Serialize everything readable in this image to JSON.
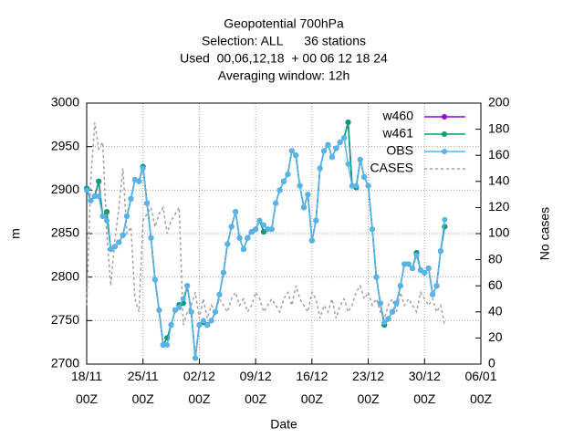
{
  "chart_data": {
    "type": "line",
    "title": [
      "Geopotential 700hPa",
      "Selection: ALL      36 stations",
      "Used  00,06,12,18  + 00 06 12 18 24",
      "Averaging window: 12h"
    ],
    "xlabel": "Date",
    "ylabel": "m",
    "y2label": "No cases",
    "x": [
      "18/11 00Z",
      "18/11 12Z",
      "19/11 00Z",
      "19/11 12Z",
      "20/11 00Z",
      "20/11 12Z",
      "21/11 00Z",
      "21/11 12Z",
      "22/11 00Z",
      "22/11 12Z",
      "23/11 00Z",
      "23/11 12Z",
      "24/11 00Z",
      "24/11 12Z",
      "25/11 00Z",
      "25/11 12Z",
      "26/11 00Z",
      "26/11 12Z",
      "27/11 00Z",
      "27/11 12Z",
      "28/11 00Z",
      "28/11 12Z",
      "29/11 00Z",
      "29/11 12Z",
      "30/11 00Z",
      "30/11 12Z",
      "01/12 00Z",
      "01/12 12Z",
      "02/12 00Z",
      "02/12 12Z",
      "03/12 00Z",
      "03/12 12Z",
      "04/12 00Z",
      "04/12 12Z",
      "05/12 00Z",
      "05/12 12Z",
      "06/12 00Z",
      "06/12 12Z",
      "07/12 00Z",
      "07/12 12Z",
      "08/12 00Z",
      "08/12 12Z",
      "09/12 00Z",
      "09/12 12Z",
      "10/12 00Z",
      "10/12 12Z",
      "11/12 00Z",
      "11/12 12Z",
      "12/12 00Z",
      "12/12 12Z",
      "13/12 00Z",
      "13/12 12Z",
      "14/12 00Z",
      "14/12 12Z",
      "15/12 00Z",
      "15/12 12Z",
      "16/12 00Z",
      "16/12 12Z",
      "17/12 00Z",
      "17/12 12Z",
      "18/12 00Z",
      "18/12 12Z",
      "19/12 00Z",
      "19/12 12Z",
      "20/12 00Z",
      "20/12 12Z",
      "21/12 00Z",
      "21/12 12Z",
      "22/12 00Z",
      "22/12 12Z",
      "23/12 00Z",
      "23/12 12Z",
      "24/12 00Z",
      "24/12 12Z",
      "25/12 00Z",
      "25/12 12Z",
      "26/12 00Z",
      "26/12 12Z",
      "27/12 00Z",
      "27/12 12Z",
      "28/12 00Z",
      "28/12 12Z",
      "29/12 00Z",
      "29/12 12Z",
      "30/12 00Z",
      "30/12 12Z",
      "31/12 00Z",
      "31/12 12Z",
      "01/01 00Z",
      "01/01 12Z"
    ],
    "series": [
      {
        "name": "w460",
        "color": "#9400d3",
        "values": [
          2902,
          2888,
          2893,
          2910,
          2870,
          2875,
          2832,
          2835,
          2840,
          2848,
          2870,
          2890,
          2912,
          2910,
          2927,
          2885,
          2845,
          2797,
          2762,
          2722,
          2730,
          2745,
          2762,
          2768,
          2770,
          2790,
          2760,
          2707,
          2745,
          2748,
          2745,
          2750,
          2760,
          2780,
          2805,
          2838,
          2858,
          2875,
          2845,
          2832,
          2845,
          2852,
          2855,
          2865,
          2852,
          2855,
          2855,
          2885,
          2900,
          2910,
          2918,
          2945,
          2940,
          2905,
          2880,
          2895,
          2842,
          2865,
          2925,
          2945,
          2952,
          2938,
          2948,
          2955,
          2960,
          2978,
          2905,
          2903,
          2935,
          2915,
          2905,
          2855,
          2800,
          2770,
          2745,
          2752,
          2760,
          2770,
          2790,
          2815,
          2815,
          2810,
          2828,
          2808,
          2805,
          2810,
          2780,
          2790,
          2830,
          2858
        ]
      },
      {
        "name": "w461",
        "color": "#009e73",
        "values": [
          2902,
          2888,
          2893,
          2910,
          2870,
          2875,
          2832,
          2835,
          2840,
          2848,
          2870,
          2890,
          2912,
          2910,
          2927,
          2885,
          2845,
          2797,
          2762,
          2722,
          2730,
          2745,
          2762,
          2768,
          2770,
          2790,
          2760,
          2707,
          2745,
          2748,
          2745,
          2750,
          2760,
          2780,
          2805,
          2838,
          2858,
          2875,
          2845,
          2832,
          2845,
          2852,
          2855,
          2865,
          2852,
          2855,
          2855,
          2885,
          2900,
          2910,
          2918,
          2945,
          2940,
          2905,
          2880,
          2895,
          2842,
          2865,
          2925,
          2945,
          2952,
          2938,
          2948,
          2955,
          2960,
          2978,
          2905,
          2903,
          2935,
          2915,
          2905,
          2855,
          2800,
          2770,
          2745,
          2752,
          2760,
          2770,
          2790,
          2815,
          2815,
          2810,
          2828,
          2808,
          2805,
          2810,
          2780,
          2790,
          2830,
          2858
        ]
      },
      {
        "name": "OBS",
        "color": "#56b4e9",
        "values": [
          2900,
          2888,
          2893,
          2893,
          2870,
          2865,
          2832,
          2835,
          2840,
          2848,
          2870,
          2890,
          2912,
          2910,
          2925,
          2885,
          2845,
          2797,
          2762,
          2722,
          2722,
          2745,
          2762,
          2765,
          2775,
          2790,
          2760,
          2707,
          2745,
          2750,
          2745,
          2750,
          2760,
          2780,
          2805,
          2838,
          2858,
          2875,
          2845,
          2832,
          2845,
          2852,
          2855,
          2865,
          2860,
          2855,
          2855,
          2885,
          2900,
          2910,
          2918,
          2945,
          2940,
          2905,
          2880,
          2895,
          2842,
          2865,
          2925,
          2945,
          2952,
          2938,
          2948,
          2955,
          2960,
          2930,
          2905,
          2905,
          2935,
          2915,
          2905,
          2855,
          2800,
          2770,
          2748,
          2752,
          2760,
          2770,
          2790,
          2815,
          2815,
          2810,
          2825,
          2808,
          2805,
          2810,
          2780,
          2790,
          2830,
          2866
        ]
      },
      {
        "name": "CASES",
        "color": "#a0a0a0",
        "axis": "y2",
        "dashed": true,
        "values": [
          45,
          140,
          185,
          165,
          170,
          100,
          60,
          95,
          120,
          150,
          100,
          105,
          50,
          40,
          110,
          115,
          120,
          105,
          115,
          120,
          100,
          110,
          115,
          120,
          30,
          40,
          45,
          55,
          35,
          50,
          35,
          45,
          40,
          50,
          45,
          40,
          50,
          55,
          45,
          50,
          40,
          45,
          55,
          50,
          40,
          45,
          50,
          45,
          40,
          50,
          55,
          45,
          60,
          50,
          45,
          40,
          55,
          50,
          35,
          45,
          40,
          50,
          35,
          45,
          50,
          40,
          45,
          55,
          60,
          50,
          55,
          45,
          50,
          40,
          35,
          45,
          50,
          40,
          55,
          45,
          50,
          45,
          40,
          55,
          50,
          45,
          50,
          40,
          45,
          30
        ]
      }
    ],
    "xlim": [
      "18/11 00Z",
      "06/01 00Z"
    ],
    "xticks": [
      {
        "value": "18/11 00Z",
        "label": "18/11\n00Z"
      },
      {
        "value": "25/11 00Z",
        "label": "25/11\n00Z"
      },
      {
        "value": "02/12 00Z",
        "label": "02/12\n00Z"
      },
      {
        "value": "09/12 00Z",
        "label": "09/12\n00Z"
      },
      {
        "value": "16/12 00Z",
        "label": "16/12\n00Z"
      },
      {
        "value": "23/12 00Z",
        "label": "23/12\n00Z"
      },
      {
        "value": "30/12 00Z",
        "label": "30/12\n00Z"
      },
      {
        "value": "06/01 00Z",
        "label": "06/01\n00Z"
      }
    ],
    "ylim": [
      2700,
      3000
    ],
    "yticks": [
      2700,
      2750,
      2800,
      2850,
      2900,
      2950,
      3000
    ],
    "y2lim": [
      0,
      200
    ],
    "y2ticks": [
      0,
      20,
      40,
      60,
      80,
      100,
      120,
      140,
      160,
      180,
      200
    ],
    "grid": true,
    "legend": "upper right"
  }
}
